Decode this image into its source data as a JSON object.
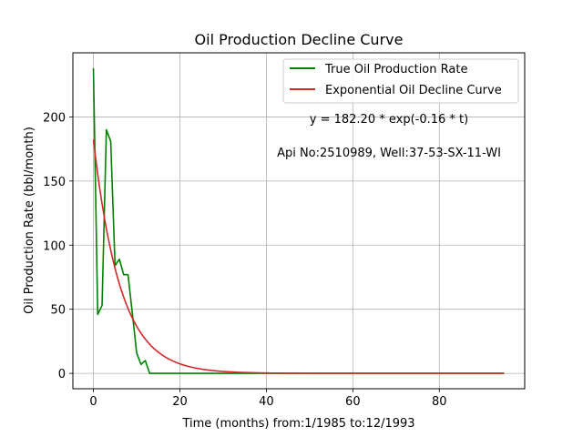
{
  "chart_data": {
    "type": "line",
    "title": "Oil Production Decline Curve",
    "xlabel": "Time (months) from:1/1985 to:12/1993",
    "ylabel": "Oil Production Rate (bbl/month)",
    "xlim": [
      -4.75,
      99.75
    ],
    "ylim": [
      -12,
      250
    ],
    "xticks": [
      0,
      20,
      40,
      60,
      80
    ],
    "yticks": [
      0,
      50,
      100,
      150,
      200
    ],
    "grid": true,
    "legend_position": "top-right",
    "annotations": [
      "y = 182.20 * exp(-0.16 * t)",
      "Api No:2510989, Well:37-53-SX-11-WI"
    ],
    "series": [
      {
        "name": "True Oil Production Rate",
        "color": "#008000",
        "x": [
          0,
          1,
          2,
          3,
          4,
          5,
          6,
          7,
          8,
          9,
          10,
          11,
          12,
          13,
          95
        ],
        "y": [
          238,
          46,
          53,
          190,
          181,
          84,
          89,
          77,
          77,
          47,
          16,
          7,
          10,
          0,
          0
        ]
      },
      {
        "name": "Exponential Oil Decline Curve",
        "color": "#d62728",
        "model": {
          "a": 182.2,
          "b": 0.16
        },
        "x_range": [
          0,
          95
        ]
      }
    ]
  }
}
